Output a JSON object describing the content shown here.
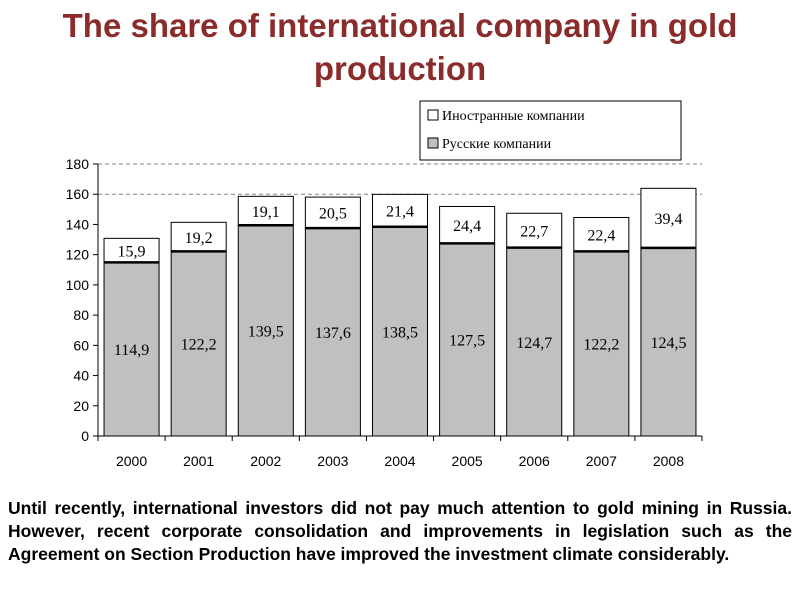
{
  "slide": {
    "title": "The share of international company in gold production",
    "body": "Until recently, international investors did not pay much attention to gold mining in Russia. However, recent corporate consolidation and improvements in legislation such as the Agreement on Section Production have improved the investment climate considerably."
  },
  "chart_data": {
    "type": "bar",
    "stacked": true,
    "title": "",
    "xlabel": "",
    "ylabel": "",
    "categories": [
      "2000",
      "2001",
      "2002",
      "2003",
      "2004",
      "2005",
      "2006",
      "2007",
      "2008"
    ],
    "series": [
      {
        "name": "Русские компании",
        "values": [
          114.9,
          122.2,
          139.5,
          137.6,
          138.5,
          127.5,
          124.7,
          122.2,
          124.5
        ],
        "labels": [
          "114,9",
          "122,2",
          "139,5",
          "137,6",
          "138,5",
          "127,5",
          "124,7",
          "122,2",
          "124,5"
        ],
        "color": "#c0c0c0"
      },
      {
        "name": "Иностранные компании",
        "values": [
          15.9,
          19.2,
          19.1,
          20.5,
          21.4,
          24.4,
          22.7,
          22.4,
          39.4
        ],
        "labels": [
          "15,9",
          "19,2",
          "19,1",
          "20,5",
          "21,4",
          "24,4",
          "22,7",
          "22,4",
          "39,4"
        ],
        "color": "#ffffff"
      }
    ],
    "ylim": [
      0,
      180
    ],
    "yticks": [
      0,
      20,
      40,
      60,
      80,
      100,
      120,
      140,
      160,
      180
    ],
    "grid": "dashed horizontal at 160 and 180",
    "legend_position": "top-right",
    "legend_order": [
      "Иностранные компании",
      "Русские компании"
    ]
  }
}
